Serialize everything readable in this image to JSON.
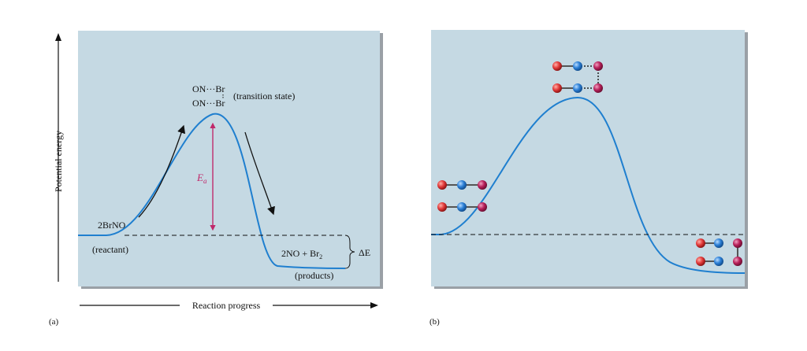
{
  "colors": {
    "panel_bg": "#c5d9e3",
    "panel_shadow": "#9aa0a6",
    "curve": "#1f7fcf",
    "ea_arrow": "#c0286a",
    "text": "#111111",
    "atom_o": "#e23a3a",
    "atom_n": "#2b7fd6",
    "atom_br": "#b8205a"
  },
  "axes": {
    "y_label": "Potential energy",
    "x_label": "Reaction progress"
  },
  "panel_a": {
    "letter": "(a)",
    "ts_line1_left": "ON···Br",
    "ts_line2_left": "ON···Br",
    "ts_note": "(transition state)",
    "reactant_formula": "2BrNO",
    "reactant_note": "(reactant)",
    "ea_symbol": "E",
    "ea_subscript": "a",
    "products_formula": "2NO + Br",
    "products_subscript": "2",
    "products_note": "(products)",
    "delta_e": "ΔE"
  },
  "panel_b": {
    "letter": "(b)",
    "molecule_icons": [
      "ON-Br pair (reactant)",
      "ON···Br activated complex",
      "NO + Br2 (products)"
    ]
  }
}
